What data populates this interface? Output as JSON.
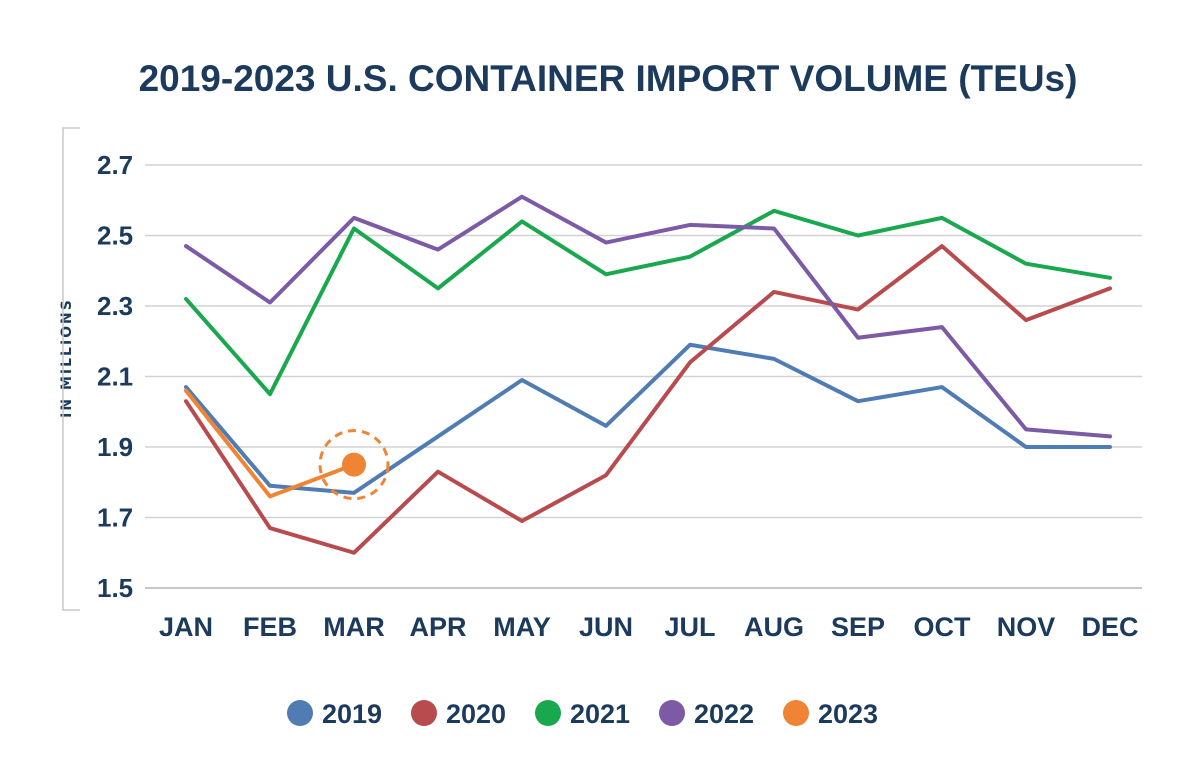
{
  "chart_data": {
    "type": "line",
    "title": "2019-2023 U.S. CONTAINER IMPORT VOLUME (TEUs)",
    "ylabel": "IN MILLIONS",
    "xlabel": "",
    "categories": [
      "JAN",
      "FEB",
      "MAR",
      "APR",
      "MAY",
      "JUN",
      "JUL",
      "AUG",
      "SEP",
      "OCT",
      "NOV",
      "DEC"
    ],
    "yticks": [
      "2.7",
      "2.5",
      "2.3",
      "2.1",
      "1.9",
      "1.7",
      "1.5"
    ],
    "ylim": [
      1.5,
      2.7
    ],
    "grid": true,
    "legend_position": "bottom",
    "highlight": {
      "series": "2023",
      "category": "MAR",
      "value": 1.85
    },
    "series": [
      {
        "name": "2019",
        "color": "#4f7cb3",
        "values": [
          2.07,
          1.79,
          1.77,
          1.93,
          2.09,
          1.96,
          2.19,
          2.15,
          2.03,
          2.07,
          1.9,
          1.9
        ]
      },
      {
        "name": "2020",
        "color": "#b84b4e",
        "values": [
          2.03,
          1.67,
          1.6,
          1.83,
          1.69,
          1.82,
          2.14,
          2.34,
          2.29,
          2.47,
          2.26,
          2.35
        ]
      },
      {
        "name": "2021",
        "color": "#1aa84f",
        "values": [
          2.32,
          2.05,
          2.52,
          2.35,
          2.54,
          2.39,
          2.44,
          2.57,
          2.5,
          2.55,
          2.42,
          2.38
        ]
      },
      {
        "name": "2022",
        "color": "#7d5aa6",
        "values": [
          2.47,
          2.31,
          2.55,
          2.46,
          2.61,
          2.48,
          2.53,
          2.52,
          2.21,
          2.24,
          1.95,
          1.93
        ]
      },
      {
        "name": "2023",
        "color": "#ef8534",
        "values": [
          2.06,
          1.76,
          1.85,
          null,
          null,
          null,
          null,
          null,
          null,
          null,
          null,
          null
        ]
      }
    ]
  }
}
